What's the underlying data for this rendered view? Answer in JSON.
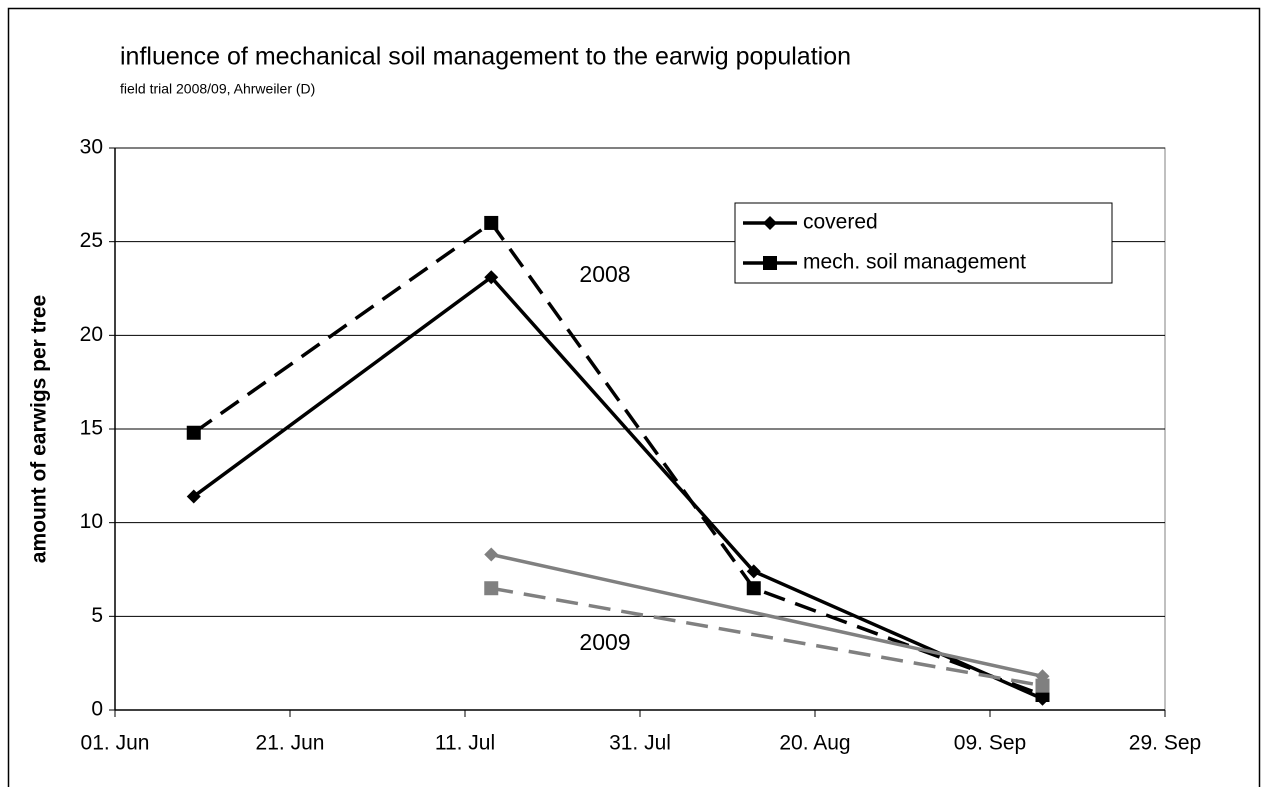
{
  "chart_data": {
    "type": "line",
    "title": "influence of mechanical soil management to the earwig population",
    "subtitle": "field trial 2008/09, Ahrweiler (D)",
    "y_label": "amount of earwigs per tree",
    "annotations": [
      "2008",
      "2009"
    ],
    "xlim": [
      0,
      120
    ],
    "xticks": [
      {
        "value": 0,
        "label": "01. Jun"
      },
      {
        "value": 20,
        "label": "21. Jun"
      },
      {
        "value": 40,
        "label": "11. Jul"
      },
      {
        "value": 60,
        "label": "31. Jul"
      },
      {
        "value": 80,
        "label": "20. Aug"
      },
      {
        "value": 100,
        "label": "09. Sep"
      },
      {
        "value": 120,
        "label": "29. Sep"
      }
    ],
    "ylim": [
      0,
      30
    ],
    "yticks": [
      0,
      5,
      10,
      15,
      20,
      25,
      30
    ],
    "grid": true,
    "legend": "top-right",
    "series": [
      {
        "name": "covered",
        "color": "#000000",
        "marker": "diamond",
        "dash": false,
        "x": [
          9,
          43,
          73,
          106
        ],
        "values": [
          11.4,
          23.1,
          7.4,
          0.6
        ]
      },
      {
        "name": "mech. soil management",
        "color": "#000000",
        "marker": "square",
        "dash": true,
        "x": [
          9,
          43,
          73,
          106
        ],
        "values": [
          14.8,
          26.0,
          6.5,
          0.8
        ]
      },
      {
        "color": "#808080",
        "marker": "diamond",
        "dash": false,
        "x": [
          43,
          106
        ],
        "values": [
          8.3,
          1.8
        ]
      },
      {
        "color": "#808080",
        "marker": "square",
        "dash": true,
        "x": [
          43,
          106
        ],
        "values": [
          6.5,
          1.3
        ]
      }
    ]
  }
}
